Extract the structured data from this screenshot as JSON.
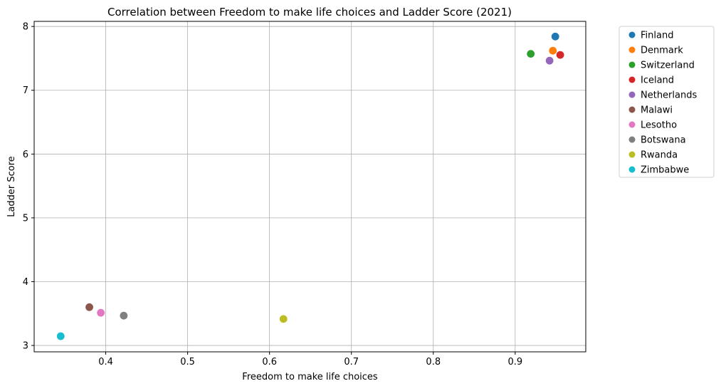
{
  "chart_data": {
    "type": "scatter",
    "title": "Correlation between Freedom to make life choices and Ladder Score (2021)",
    "xlabel": "Freedom to make life choices",
    "ylabel": "Ladder Score",
    "xlim": [
      0.3126,
      0.9862
    ],
    "ylim": [
      2.9,
      8.08
    ],
    "x_ticks": [
      0.4,
      0.5,
      0.6,
      0.7,
      0.8,
      0.9
    ],
    "x_tick_labels": [
      "0.4",
      "0.5",
      "0.6",
      "0.7",
      "0.8",
      "0.9"
    ],
    "y_ticks": [
      3,
      4,
      5,
      6,
      7,
      8
    ],
    "y_tick_labels": [
      "3",
      "4",
      "5",
      "6",
      "7",
      "8"
    ],
    "grid": true,
    "legend_position": "outside-right-top",
    "series": [
      {
        "name": "Finland",
        "color": "#1f77b4",
        "x": 0.949,
        "y": 7.842
      },
      {
        "name": "Denmark",
        "color": "#ff7f0e",
        "x": 0.946,
        "y": 7.62
      },
      {
        "name": "Switzerland",
        "color": "#2ca02c",
        "x": 0.919,
        "y": 7.571
      },
      {
        "name": "Iceland",
        "color": "#d62728",
        "x": 0.955,
        "y": 7.554
      },
      {
        "name": "Netherlands",
        "color": "#9467bd",
        "x": 0.942,
        "y": 7.464
      },
      {
        "name": "Malawi",
        "color": "#8c564b",
        "x": 0.38,
        "y": 3.6
      },
      {
        "name": "Lesotho",
        "color": "#e377c2",
        "x": 0.394,
        "y": 3.512
      },
      {
        "name": "Botswana",
        "color": "#7f7f7f",
        "x": 0.422,
        "y": 3.467
      },
      {
        "name": "Rwanda",
        "color": "#bcbd22",
        "x": 0.617,
        "y": 3.415
      },
      {
        "name": "Zimbabwe",
        "color": "#17becf",
        "x": 0.345,
        "y": 3.145
      }
    ]
  }
}
